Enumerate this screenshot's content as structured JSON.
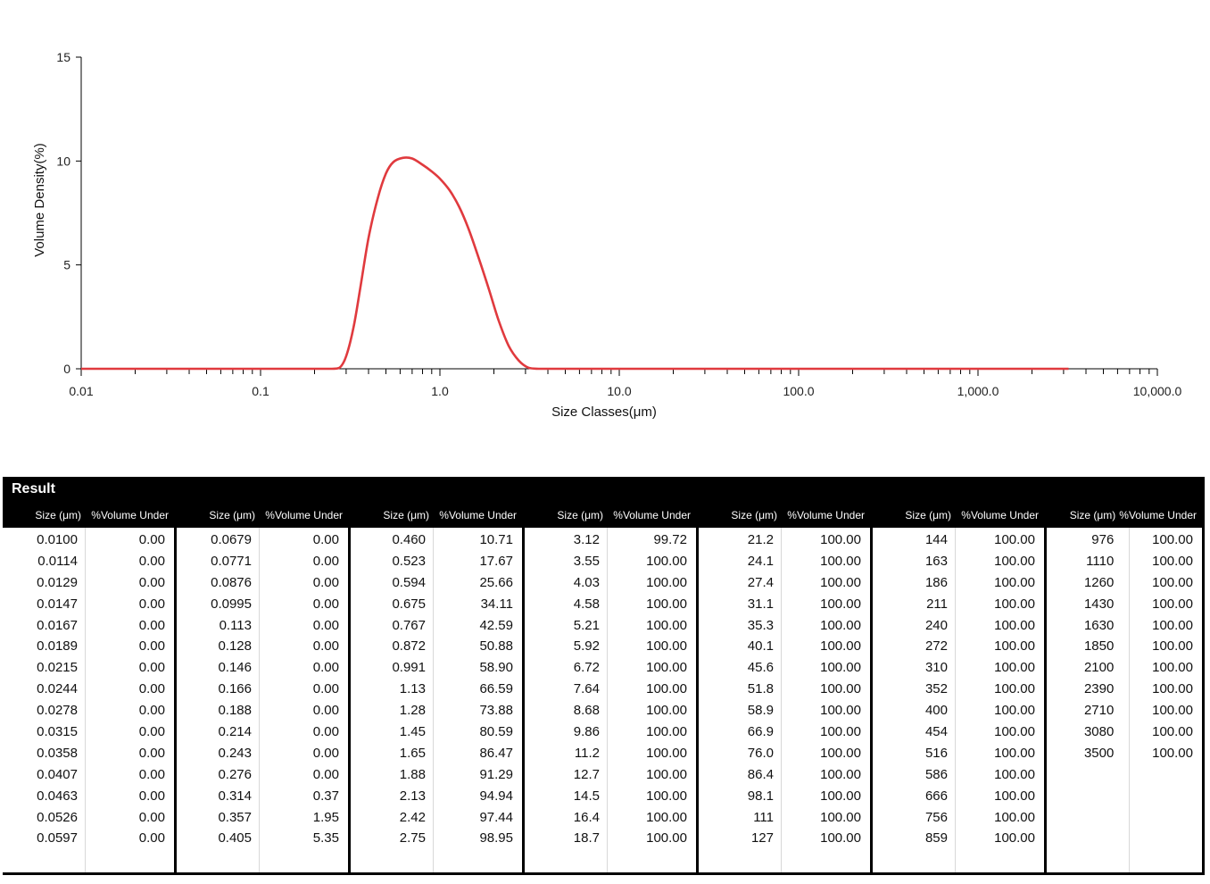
{
  "chart_data": {
    "type": "line",
    "title": "",
    "xlabel": "Size Classes(μm)",
    "ylabel": "Volume Density(%)",
    "xscale": "log",
    "xlim": [
      0.01,
      10000
    ],
    "ylim": [
      0,
      15
    ],
    "x_tick_labels": [
      "0.01",
      "0.1",
      "1.0",
      "10.0",
      "100.0",
      "1,000.0",
      "10,000.0"
    ],
    "y_tick_labels": [
      "0",
      "5",
      "10",
      "15"
    ],
    "x_ticks": [
      0.01,
      0.1,
      1,
      10,
      100,
      1000,
      10000
    ],
    "y_ticks": [
      0,
      5,
      10,
      15
    ],
    "grid": false,
    "line_color": "#e03a3e",
    "series": [
      {
        "x": [
          0.01,
          0.05,
          0.1,
          0.2,
          0.25,
          0.276,
          0.3,
          0.33,
          0.36,
          0.4,
          0.45,
          0.5,
          0.55,
          0.62,
          0.7,
          0.8,
          0.9,
          1.0,
          1.13,
          1.28,
          1.45,
          1.65,
          1.88,
          2.13,
          2.42,
          2.75,
          3.12,
          3.55,
          4.0,
          5.0,
          10,
          100,
          1000,
          3200
        ],
        "y": [
          0,
          0,
          0,
          0,
          0,
          0.05,
          0.6,
          2.0,
          3.9,
          6.3,
          8.2,
          9.4,
          9.95,
          10.15,
          10.12,
          9.82,
          9.5,
          9.15,
          8.6,
          7.8,
          6.7,
          5.3,
          3.8,
          2.3,
          1.1,
          0.4,
          0.05,
          0,
          0,
          0,
          0,
          0,
          0,
          0
        ]
      }
    ]
  },
  "result": {
    "title": "Result",
    "size_header": "Size (μm)",
    "volume_header": "%Volume Under",
    "groups": [
      {
        "rows": [
          [
            "0.0100",
            "0.00"
          ],
          [
            "0.0114",
            "0.00"
          ],
          [
            "0.0129",
            "0.00"
          ],
          [
            "0.0147",
            "0.00"
          ],
          [
            "0.0167",
            "0.00"
          ],
          [
            "0.0189",
            "0.00"
          ],
          [
            "0.0215",
            "0.00"
          ],
          [
            "0.0244",
            "0.00"
          ],
          [
            "0.0278",
            "0.00"
          ],
          [
            "0.0315",
            "0.00"
          ],
          [
            "0.0358",
            "0.00"
          ],
          [
            "0.0407",
            "0.00"
          ],
          [
            "0.0463",
            "0.00"
          ],
          [
            "0.0526",
            "0.00"
          ],
          [
            "0.0597",
            "0.00"
          ]
        ]
      },
      {
        "rows": [
          [
            "0.0679",
            "0.00"
          ],
          [
            "0.0771",
            "0.00"
          ],
          [
            "0.0876",
            "0.00"
          ],
          [
            "0.0995",
            "0.00"
          ],
          [
            "0.113",
            "0.00"
          ],
          [
            "0.128",
            "0.00"
          ],
          [
            "0.146",
            "0.00"
          ],
          [
            "0.166",
            "0.00"
          ],
          [
            "0.188",
            "0.00"
          ],
          [
            "0.214",
            "0.00"
          ],
          [
            "0.243",
            "0.00"
          ],
          [
            "0.276",
            "0.00"
          ],
          [
            "0.314",
            "0.37"
          ],
          [
            "0.357",
            "1.95"
          ],
          [
            "0.405",
            "5.35"
          ]
        ]
      },
      {
        "rows": [
          [
            "0.460",
            "10.71"
          ],
          [
            "0.523",
            "17.67"
          ],
          [
            "0.594",
            "25.66"
          ],
          [
            "0.675",
            "34.11"
          ],
          [
            "0.767",
            "42.59"
          ],
          [
            "0.872",
            "50.88"
          ],
          [
            "0.991",
            "58.90"
          ],
          [
            "1.13",
            "66.59"
          ],
          [
            "1.28",
            "73.88"
          ],
          [
            "1.45",
            "80.59"
          ],
          [
            "1.65",
            "86.47"
          ],
          [
            "1.88",
            "91.29"
          ],
          [
            "2.13",
            "94.94"
          ],
          [
            "2.42",
            "97.44"
          ],
          [
            "2.75",
            "98.95"
          ]
        ]
      },
      {
        "rows": [
          [
            "3.12",
            "99.72"
          ],
          [
            "3.55",
            "100.00"
          ],
          [
            "4.03",
            "100.00"
          ],
          [
            "4.58",
            "100.00"
          ],
          [
            "5.21",
            "100.00"
          ],
          [
            "5.92",
            "100.00"
          ],
          [
            "6.72",
            "100.00"
          ],
          [
            "7.64",
            "100.00"
          ],
          [
            "8.68",
            "100.00"
          ],
          [
            "9.86",
            "100.00"
          ],
          [
            "11.2",
            "100.00"
          ],
          [
            "12.7",
            "100.00"
          ],
          [
            "14.5",
            "100.00"
          ],
          [
            "16.4",
            "100.00"
          ],
          [
            "18.7",
            "100.00"
          ]
        ]
      },
      {
        "rows": [
          [
            "21.2",
            "100.00"
          ],
          [
            "24.1",
            "100.00"
          ],
          [
            "27.4",
            "100.00"
          ],
          [
            "31.1",
            "100.00"
          ],
          [
            "35.3",
            "100.00"
          ],
          [
            "40.1",
            "100.00"
          ],
          [
            "45.6",
            "100.00"
          ],
          [
            "51.8",
            "100.00"
          ],
          [
            "58.9",
            "100.00"
          ],
          [
            "66.9",
            "100.00"
          ],
          [
            "76.0",
            "100.00"
          ],
          [
            "86.4",
            "100.00"
          ],
          [
            "98.1",
            "100.00"
          ],
          [
            "111",
            "100.00"
          ],
          [
            "127",
            "100.00"
          ]
        ]
      },
      {
        "rows": [
          [
            "144",
            "100.00"
          ],
          [
            "163",
            "100.00"
          ],
          [
            "186",
            "100.00"
          ],
          [
            "211",
            "100.00"
          ],
          [
            "240",
            "100.00"
          ],
          [
            "272",
            "100.00"
          ],
          [
            "310",
            "100.00"
          ],
          [
            "352",
            "100.00"
          ],
          [
            "400",
            "100.00"
          ],
          [
            "454",
            "100.00"
          ],
          [
            "516",
            "100.00"
          ],
          [
            "586",
            "100.00"
          ],
          [
            "666",
            "100.00"
          ],
          [
            "756",
            "100.00"
          ],
          [
            "859",
            "100.00"
          ]
        ]
      },
      {
        "rows": [
          [
            "976",
            "100.00"
          ],
          [
            "1110",
            "100.00"
          ],
          [
            "1260",
            "100.00"
          ],
          [
            "1430",
            "100.00"
          ],
          [
            "1630",
            "100.00"
          ],
          [
            "1850",
            "100.00"
          ],
          [
            "2100",
            "100.00"
          ],
          [
            "2390",
            "100.00"
          ],
          [
            "2710",
            "100.00"
          ],
          [
            "3080",
            "100.00"
          ],
          [
            "3500",
            "100.00"
          ]
        ]
      }
    ]
  }
}
